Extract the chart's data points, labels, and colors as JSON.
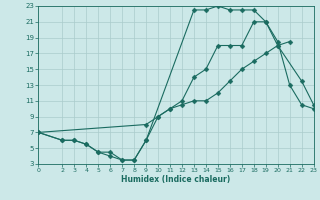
{
  "bg_color": "#cce8e8",
  "grid_color": "#aacccc",
  "line_color": "#1a6b60",
  "xlabel": "Humidex (Indice chaleur)",
  "xlim": [
    0,
    23
  ],
  "ylim": [
    3,
    23
  ],
  "xticks": [
    0,
    2,
    3,
    4,
    5,
    6,
    7,
    8,
    9,
    10,
    11,
    12,
    13,
    14,
    15,
    16,
    17,
    18,
    19,
    20,
    21,
    22,
    23
  ],
  "yticks": [
    3,
    5,
    7,
    9,
    11,
    13,
    15,
    17,
    19,
    21,
    23
  ],
  "curve1_x": [
    0,
    2,
    3,
    4,
    5,
    6,
    7,
    8,
    9,
    10,
    11,
    12,
    13,
    14,
    15,
    16,
    17,
    18,
    19,
    20,
    21
  ],
  "curve1_y": [
    7,
    6,
    6,
    5.5,
    4.5,
    4.5,
    3.5,
    3.5,
    6,
    9,
    10,
    10.5,
    11,
    11,
    12,
    13.5,
    15,
    16,
    17,
    18,
    18.5
  ],
  "curve2_x": [
    0,
    2,
    3,
    4,
    5,
    6,
    7,
    8,
    9,
    13,
    14,
    15,
    16,
    17,
    18,
    19,
    20,
    21,
    22,
    23
  ],
  "curve2_y": [
    7,
    6,
    6,
    5.5,
    4.5,
    4,
    3.5,
    3.5,
    6,
    22.5,
    22.5,
    23,
    22.5,
    22.5,
    22.5,
    21,
    18.5,
    13,
    10.5,
    10
  ],
  "curve3_x": [
    0,
    9,
    10,
    11,
    12,
    13,
    14,
    15,
    16,
    17,
    18,
    19,
    20,
    22,
    23
  ],
  "curve3_y": [
    7,
    8,
    9,
    10,
    11,
    14,
    15,
    18,
    18,
    18,
    21,
    21,
    18,
    13.5,
    10.5
  ]
}
